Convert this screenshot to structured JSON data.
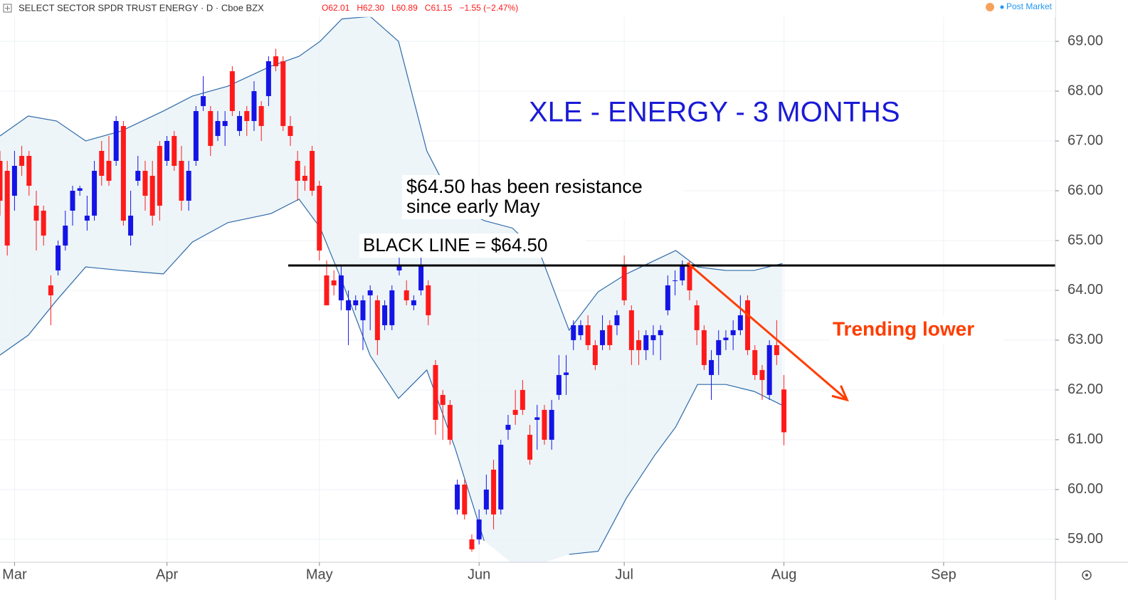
{
  "header": {
    "symbol": "SELECT SECTOR SPDR TRUST ENERGY · D · Cboe BZX",
    "ohlc": [
      "O62.01",
      "H62.30",
      "L60.89",
      "C61.15",
      "−1.55 (−2.47%)"
    ],
    "status": "Post Market"
  },
  "chart_data": {
    "type": "candlestick",
    "title": "XLE - ENERGY - 3 MONTHS",
    "annotations": {
      "resistance_text": [
        "$64.50 has been resistance",
        "since early May"
      ],
      "line_label": "BLACK LINE = $64.50",
      "trend_label": "Trending lower"
    },
    "up_color": "#1414e6",
    "down_color": "#ff1a1a",
    "grid": true,
    "xlim": [
      -2,
      143.4
    ],
    "ylim": [
      58.54,
      69.83
    ],
    "xticks": [
      {
        "value": 0,
        "label": "Mar"
      },
      {
        "value": 21,
        "label": "Apr"
      },
      {
        "value": 42,
        "label": "May"
      },
      {
        "value": 64,
        "label": "Jun"
      },
      {
        "value": 84,
        "label": "Jul"
      },
      {
        "value": 106,
        "label": "Aug"
      },
      {
        "value": 128,
        "label": "Sep"
      }
    ],
    "yticks": [
      {
        "value": 59,
        "label": "59.00"
      },
      {
        "value": 60,
        "label": "60.00"
      },
      {
        "value": 61,
        "label": "61.00"
      },
      {
        "value": 62,
        "label": "62.00"
      },
      {
        "value": 63,
        "label": "63.00"
      },
      {
        "value": 64,
        "label": "64.00"
      },
      {
        "value": 65,
        "label": "65.00"
      },
      {
        "value": 66,
        "label": "66.00"
      },
      {
        "value": 67,
        "label": "67.00"
      },
      {
        "value": 68,
        "label": "68.00"
      },
      {
        "value": 69,
        "label": "69.00"
      }
    ],
    "x": [
      -2,
      -1,
      0,
      1,
      2,
      3,
      4,
      5,
      6,
      7,
      8,
      9,
      10,
      11,
      12,
      13,
      14,
      15,
      16,
      17,
      18,
      19,
      20,
      21,
      22,
      23,
      24,
      25,
      26,
      27,
      28,
      29,
      30,
      31,
      32,
      33,
      34,
      35,
      36,
      37,
      38,
      39,
      40,
      41,
      42,
      43,
      44,
      45,
      46,
      47,
      48,
      49,
      50,
      51,
      52,
      53,
      54,
      55,
      56,
      57,
      58,
      59,
      60,
      61,
      62,
      63,
      64,
      65,
      66,
      67,
      68,
      69,
      70,
      71,
      72,
      73,
      74,
      75,
      76,
      77,
      78,
      79,
      80,
      81,
      82,
      83,
      84,
      85,
      86,
      87,
      88,
      89,
      90,
      91,
      92,
      93,
      94,
      95,
      96,
      97,
      98,
      99,
      100,
      101,
      102,
      103,
      104,
      105,
      106
    ],
    "open": [
      66.6,
      66.4,
      65.9,
      66.7,
      66.7,
      65.7,
      65.6,
      64.1,
      64.4,
      64.9,
      65.6,
      66.0,
      65.4,
      65.5,
      66.8,
      66.6,
      66.6,
      67.3,
      65.1,
      66.2,
      66.4,
      66.3,
      66.9,
      66.6,
      67.1,
      66.6,
      65.8,
      66.6,
      67.7,
      67.6,
      67.1,
      67.3,
      68.4,
      67.2,
      67.6,
      67.4,
      67.7,
      67.9,
      68.7,
      68.6,
      67.3,
      66.6,
      66.3,
      66.8,
      66.1,
      64.3,
      64.2,
      63.8,
      63.6,
      63.7,
      63.4,
      63.9,
      63.8,
      63.3,
      63.3,
      64.4,
      64.0,
      63.7,
      64.0,
      64.1,
      62.5,
      61.9,
      61.7,
      59.6,
      60.1,
      59.0,
      59.0,
      59.6,
      60.4,
      59.6,
      61.2,
      61.6,
      62.0,
      61.1,
      61.4,
      61.6,
      61.0,
      61.9,
      62.3,
      63.0,
      63.1,
      63.3,
      62.9,
      62.9,
      63.3,
      63.3,
      64.5,
      63.6,
      63.0,
      62.8,
      63.0,
      63.1,
      63.6,
      64.2,
      64.2,
      64.5,
      63.7,
      63.2,
      62.3,
      62.7,
      63.0,
      63.1,
      63.2,
      63.8,
      62.8,
      62.4,
      61.9,
      62.9,
      62.01
    ],
    "high": [
      66.8,
      66.6,
      66.8,
      66.9,
      66.8,
      66.0,
      65.7,
      64.3,
      65.0,
      65.6,
      66.1,
      66.1,
      65.9,
      66.6,
      67.0,
      67.1,
      67.5,
      67.4,
      66.0,
      66.7,
      66.6,
      66.6,
      67.0,
      67.1,
      67.2,
      66.9,
      66.6,
      67.7,
      68.3,
      67.7,
      67.6,
      67.6,
      68.5,
      67.6,
      67.7,
      68.2,
      67.8,
      68.7,
      68.85,
      68.7,
      67.5,
      66.8,
      66.5,
      66.9,
      66.2,
      64.6,
      64.4,
      64.5,
      64.0,
      63.9,
      63.9,
      64.1,
      63.9,
      63.8,
      64.1,
      64.7,
      64.2,
      63.9,
      64.7,
      64.2,
      62.6,
      62.0,
      61.8,
      60.2,
      60.2,
      59.1,
      59.6,
      60.3,
      60.6,
      61.0,
      61.5,
      62.0,
      62.2,
      61.3,
      61.7,
      61.7,
      61.8,
      62.7,
      62.7,
      63.4,
      63.4,
      63.5,
      63.0,
      63.5,
      63.4,
      63.6,
      64.7,
      63.7,
      63.2,
      63.2,
      63.3,
      63.3,
      64.3,
      64.4,
      64.6,
      64.6,
      63.8,
      63.3,
      62.8,
      63.2,
      63.2,
      63.4,
      63.9,
      63.9,
      62.9,
      62.5,
      63.0,
      63.4,
      62.3
    ],
    "low": [
      65.5,
      64.7,
      65.6,
      66.3,
      65.9,
      64.8,
      64.9,
      63.3,
      64.3,
      64.8,
      65.3,
      65.9,
      65.2,
      65.4,
      66.1,
      66.1,
      66.5,
      65.3,
      64.9,
      66.1,
      65.6,
      65.3,
      65.4,
      66.5,
      66.4,
      65.6,
      65.6,
      66.5,
      67.6,
      66.7,
      67.0,
      66.9,
      67.5,
      67.1,
      67.1,
      67.2,
      67.0,
      67.7,
      68.4,
      67.2,
      66.9,
      65.8,
      66.0,
      65.9,
      64.6,
      63.7,
      63.9,
      63.6,
      62.9,
      63.6,
      62.8,
      63.2,
      62.7,
      63.2,
      63.2,
      64.3,
      63.7,
      63.6,
      63.9,
      63.3,
      61.1,
      61.0,
      60.9,
      59.5,
      59.4,
      58.75,
      58.9,
      59.5,
      59.2,
      59.5,
      61.0,
      61.3,
      61.5,
      60.5,
      60.8,
      60.9,
      60.8,
      61.8,
      61.9,
      62.8,
      63.0,
      62.8,
      62.4,
      62.8,
      62.8,
      63.1,
      63.7,
      62.5,
      62.5,
      62.6,
      62.7,
      62.6,
      63.5,
      63.9,
      64.1,
      63.8,
      62.9,
      62.4,
      61.8,
      62.3,
      62.8,
      62.8,
      63.1,
      62.7,
      62.2,
      61.8,
      61.8,
      62.5,
      60.89
    ],
    "close": [
      65.8,
      64.9,
      66.5,
      66.5,
      66.1,
      65.4,
      65.1,
      63.9,
      64.9,
      65.3,
      66.0,
      66.05,
      65.5,
      66.4,
      66.3,
      66.2,
      67.4,
      65.4,
      65.5,
      66.4,
      65.9,
      65.5,
      65.7,
      67.0,
      66.5,
      65.8,
      66.4,
      67.6,
      67.9,
      66.9,
      67.4,
      67.4,
      67.6,
      67.5,
      67.4,
      68.0,
      67.3,
      68.6,
      68.5,
      67.3,
      67.1,
      66.2,
      66.2,
      66.0,
      64.8,
      63.7,
      64.1,
      64.3,
      63.8,
      63.8,
      63.8,
      64.0,
      63.0,
      63.7,
      64.0,
      64.5,
      63.8,
      63.8,
      64.5,
      63.5,
      61.4,
      61.7,
      61.0,
      60.1,
      59.5,
      58.8,
      59.4,
      60.0,
      59.5,
      60.9,
      61.3,
      61.5,
      61.6,
      60.6,
      61.45,
      61.0,
      61.6,
      62.3,
      62.35,
      63.3,
      63.3,
      62.9,
      62.5,
      63.2,
      62.9,
      63.5,
      63.8,
      62.8,
      62.8,
      63.1,
      63.1,
      63.2,
      64.1,
      64.2,
      64.5,
      64.0,
      63.2,
      62.5,
      62.6,
      63.0,
      63.05,
      63.2,
      63.5,
      62.8,
      62.3,
      62.2,
      62.9,
      62.7,
      61.15
    ],
    "bands": {
      "color": "#2f6aa8",
      "x": [
        -2,
        1.9,
        5.8,
        9.8,
        14.7,
        20.5,
        24.5,
        29.4,
        35.3,
        39.2,
        42.1,
        45.1,
        49.0,
        52.9,
        56.8,
        60.7,
        64.7,
        68.6,
        72.5,
        76.4,
        80.4,
        84.3,
        88.2,
        91.1,
        94.1,
        98.0,
        101.9,
        105.8
      ],
      "upper": [
        67.1,
        67.5,
        67.4,
        67.0,
        67.2,
        67.6,
        67.9,
        68.1,
        68.5,
        68.7,
        69.0,
        69.45,
        69.5,
        69.0,
        66.8,
        65.7,
        65.4,
        65.25,
        64.7,
        63.2,
        63.97,
        64.33,
        64.6,
        64.8,
        64.47,
        64.4,
        64.4,
        64.54
      ],
      "lower": [
        62.7,
        63.1,
        63.8,
        64.47,
        64.4,
        64.33,
        64.97,
        65.36,
        65.54,
        65.83,
        65.26,
        64.19,
        62.69,
        61.83,
        62.4,
        60.83,
        58.97,
        null,
        null,
        58.7,
        58.76,
        59.83,
        60.69,
        61.26,
        62.11,
        62.11,
        61.97,
        61.69
      ]
    },
    "resistance_line": {
      "value": 64.5,
      "x_start": 37.7,
      "color": "#000000"
    },
    "trend_arrow": {
      "x": [
        92.7,
        114.7
      ],
      "values": [
        64.55,
        61.8
      ],
      "color": "#ff3d00"
    }
  }
}
